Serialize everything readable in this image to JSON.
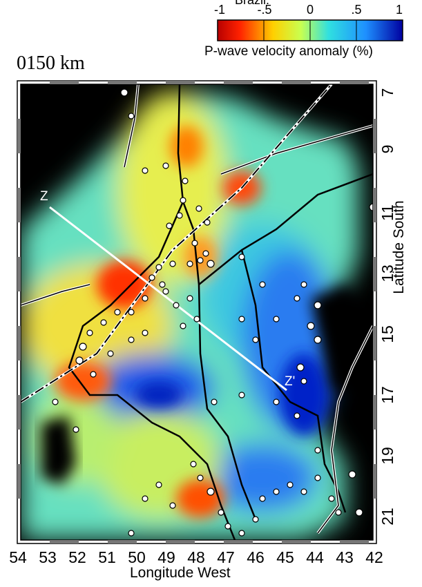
{
  "colorbar": {
    "title": "Brazil.",
    "ticks": [
      "-1",
      "-.5",
      "0",
      ".5",
      "1"
    ],
    "caption": "P-wave velocity anomaly (%)",
    "colors": [
      "#b80000",
      "#ff2200",
      "#ffd000",
      "#c8ff50",
      "#30e0e0",
      "#1e90ff",
      "#0000a0"
    ]
  },
  "scale_bar": {
    "label": "0150 km"
  },
  "axes": {
    "x_label": "Longitude West",
    "x_ticks": [
      "54",
      "53",
      "52",
      "51",
      "50",
      "49",
      "48",
      "47",
      "46",
      "45",
      "44",
      "43",
      "42"
    ],
    "y_label": "Latitude South",
    "y_ticks": [
      "7",
      "9",
      "11",
      "13",
      "15",
      "17",
      "19",
      "21"
    ]
  },
  "profile": {
    "start_label": "Z",
    "end_label": "Z'"
  },
  "map_colors": {
    "outside_resolution": "#000000",
    "profile_line": "#ffffff",
    "boundary_line": "#000000"
  }
}
